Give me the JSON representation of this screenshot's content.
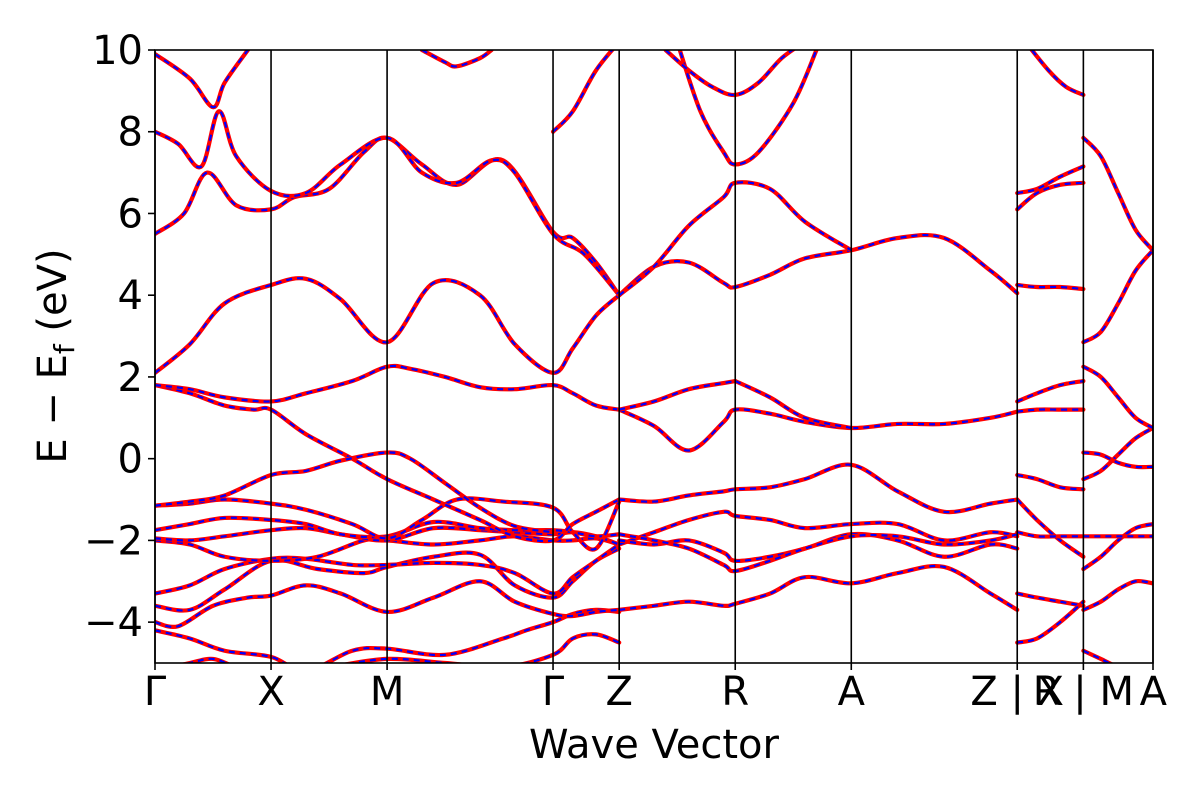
{
  "chart_data": {
    "type": "line",
    "title": "",
    "xlabel": "Wave Vector",
    "ylabel": "E − E",
    "ylabel_sub": "f",
    "ylabel_unit": " (eV)",
    "ylim": [
      -5,
      10
    ],
    "xlim": [
      0,
      8.6
    ],
    "grid": false,
    "yticks": [
      -4,
      -2,
      0,
      2,
      4,
      6,
      8,
      10
    ],
    "ytick_labels": [
      "−4",
      "−2",
      "0",
      "2",
      "4",
      "6",
      "8",
      "10"
    ],
    "high_symmetry_points": [
      {
        "label": "Γ",
        "x": 0.0
      },
      {
        "label": "X",
        "x": 1.0
      },
      {
        "label": "M",
        "x": 2.0
      },
      {
        "label": "Γ",
        "x": 3.43
      },
      {
        "label": "Z",
        "x": 4.0
      },
      {
        "label": "R",
        "x": 5.0
      },
      {
        "label": "A",
        "x": 6.0
      },
      {
        "label": "Z | X",
        "x": 7.43
      },
      {
        "label": "R | M",
        "x": 8.0
      },
      {
        "label": "A",
        "x": 8.6
      }
    ],
    "series_colors": {
      "solid": "#ff0000",
      "dashed": "#0000ff"
    },
    "bands": [
      {
        "x": [
          0,
          0.3,
          0.5,
          0.7,
          1,
          1.5,
          2,
          2.5,
          3,
          3.43,
          3.6,
          3.8,
          4
        ],
        "y": [
          -5.2,
          -5,
          -4.9,
          -5.1,
          -5.3,
          -5.1,
          -4.9,
          -5.0,
          -5.1,
          -4.8,
          -4.4,
          -4.3,
          -4.5
        ]
      },
      {
        "x": [
          0,
          0.3,
          0.6,
          1,
          1.3,
          1.7,
          2,
          2.5,
          3,
          3.2,
          3.43,
          3.6,
          3.8,
          4
        ],
        "y": [
          -4.2,
          -4.4,
          -4.7,
          -4.85,
          -5.2,
          -4.7,
          -4.65,
          -4.8,
          -4.4,
          -4.2,
          -4.0,
          -3.8,
          -3.7,
          -3.75
        ]
      },
      {
        "x": [
          0,
          0.2,
          0.5,
          0.8,
          1,
          1.3,
          1.6,
          2,
          2.4,
          2.8,
          3.1,
          3.43,
          3.6,
          3.8,
          4
        ],
        "y": [
          -4.0,
          -4.1,
          -3.6,
          -3.4,
          -3.35,
          -3.1,
          -3.3,
          -3.75,
          -3.4,
          -3.0,
          -3.5,
          -3.8,
          -3.85,
          -3.75,
          -3.7
        ]
      },
      {
        "x": [
          0,
          0.3,
          0.6,
          1,
          1.4,
          1.8,
          2,
          2.4,
          2.8,
          3.1,
          3.43,
          3.6,
          3.8,
          4
        ],
        "y": [
          -3.6,
          -3.7,
          -3.2,
          -2.5,
          -2.7,
          -2.8,
          -2.65,
          -2.4,
          -2.35,
          -3.1,
          -3.4,
          -3.0,
          -2.5,
          -2.2
        ]
      },
      {
        "x": [
          0,
          0.3,
          0.6,
          1,
          1.3,
          1.7,
          2,
          2.4,
          2.8,
          3.1,
          3.43,
          3.6,
          3.8,
          4
        ],
        "y": [
          -3.3,
          -3.1,
          -2.7,
          -2.45,
          -2.45,
          -2.6,
          -2.6,
          -2.55,
          -2.6,
          -2.8,
          -3.3,
          -2.9,
          -2.5,
          -2.1
        ]
      },
      {
        "x": [
          0,
          0.3,
          0.6,
          1,
          1.4,
          1.8,
          2,
          2.4,
          2.8,
          3.1,
          3.43,
          3.6,
          3.8,
          4
        ],
        "y": [
          -2.0,
          -2.1,
          -2.4,
          -2.5,
          -2.4,
          -2.0,
          -2.0,
          -2.1,
          -2.0,
          -1.9,
          -2.0,
          -2.0,
          -1.95,
          -2.1
        ]
      },
      {
        "x": [
          0,
          0.3,
          0.6,
          1,
          1.3,
          1.6,
          2,
          2.4,
          2.8,
          3.1,
          3.43,
          3.6,
          3.8,
          4
        ],
        "y": [
          -1.95,
          -2.0,
          -1.9,
          -1.75,
          -1.7,
          -1.85,
          -2.0,
          -1.7,
          -1.75,
          -1.8,
          -1.85,
          -1.8,
          -1.9,
          -2.1
        ]
      },
      {
        "x": [
          0,
          0.3,
          0.6,
          1,
          1.3,
          1.6,
          2,
          2.4,
          2.8,
          3.1,
          3.43,
          3.6,
          3.8,
          4
        ],
        "y": [
          -1.75,
          -1.6,
          -1.45,
          -1.5,
          -1.6,
          -1.85,
          -1.9,
          -1.55,
          -1.7,
          -1.75,
          -1.75,
          -1.8,
          -1.9,
          -1.85
        ]
      },
      {
        "x": [
          0,
          0.3,
          0.6,
          1,
          1.3,
          1.7,
          2,
          2.3,
          2.6,
          3.0,
          3.43,
          3.6,
          3.8,
          4
        ],
        "y": [
          -1.15,
          -1.1,
          -1.0,
          -1.1,
          -1.25,
          -1.6,
          -1.95,
          -1.5,
          -1.0,
          -1.05,
          -1.2,
          -1.8,
          -2.2,
          -1.05
        ]
      },
      {
        "x": [
          0,
          0.3,
          0.6,
          0.85,
          1,
          1.3,
          1.7,
          2,
          2.4,
          2.8,
          3.1,
          3.43,
          3.6,
          3.8,
          4
        ],
        "y": [
          1.8,
          1.6,
          1.3,
          1.2,
          1.2,
          0.6,
          0.0,
          -0.5,
          -1.0,
          -1.5,
          -1.9,
          -2.0,
          -1.6,
          -1.3,
          -1.0
        ]
      },
      {
        "x": [
          0,
          0.3,
          0.6,
          1,
          1.3,
          1.7,
          2,
          2.2,
          2.5,
          2.8,
          3.1,
          3.43,
          3.6,
          3.8,
          4
        ],
        "y": [
          1.8,
          1.7,
          1.5,
          1.4,
          1.6,
          1.9,
          2.25,
          2.2,
          2.0,
          1.75,
          1.7,
          1.8,
          1.6,
          1.3,
          1.2
        ]
      },
      {
        "x": [
          0,
          0.3,
          0.6,
          1,
          1.3,
          1.6,
          2,
          2.2,
          2.5,
          2.8,
          3.1,
          3.43
        ],
        "y": [
          -1.15,
          -1.05,
          -0.9,
          -0.4,
          -0.3,
          -0.05,
          0.15,
          0.0,
          -0.6,
          -1.2,
          -1.65,
          -1.8
        ]
      },
      {
        "x": [
          0,
          0.3,
          0.6,
          1,
          1.3,
          1.6,
          2,
          2.4,
          2.8,
          3.1,
          3.43,
          3.6,
          3.8,
          4
        ],
        "y": [
          2.1,
          2.8,
          3.8,
          4.25,
          4.4,
          3.9,
          2.85,
          4.3,
          4.0,
          2.8,
          2.1,
          2.7,
          3.5,
          4.0
        ]
      },
      {
        "x": [
          0,
          0.25,
          0.45,
          0.7,
          1,
          1.2,
          1.5,
          1.8,
          2,
          2.3,
          2.6,
          3.0,
          3.43,
          3.6,
          3.8,
          4
        ],
        "y": [
          5.5,
          6.0,
          7.0,
          6.2,
          6.1,
          6.4,
          6.6,
          7.5,
          7.85,
          7.2,
          6.7,
          7.3,
          5.55,
          5.4,
          4.8,
          4.0
        ]
      },
      {
        "x": [
          0,
          0.2,
          0.4,
          0.55,
          0.7,
          1,
          1.3,
          1.6,
          2,
          2.3,
          2.6,
          2.9,
          3.1,
          3.43,
          3.7,
          4
        ],
        "y": [
          8.0,
          7.7,
          7.15,
          8.5,
          7.4,
          6.55,
          6.5,
          7.2,
          7.85,
          7.0,
          6.75,
          7.3,
          7.0,
          5.5,
          5.0,
          4.0
        ]
      },
      {
        "x": [
          0,
          0.3,
          0.5,
          0.6,
          0.8
        ],
        "y": [
          9.9,
          9.3,
          8.6,
          9.2,
          10.0
        ]
      },
      {
        "x": [
          2.3,
          2.5,
          2.6,
          2.8,
          2.9
        ],
        "y": [
          10.0,
          9.7,
          9.6,
          9.8,
          10.0
        ]
      },
      {
        "x": [
          3.43,
          3.6,
          3.8,
          4
        ],
        "y": [
          8.0,
          8.5,
          9.5,
          10.2
        ]
      },
      {
        "x": [
          4,
          4.3,
          4.6,
          4.9,
          5,
          5.3,
          5.6,
          6,
          6.4,
          6.8,
          7.2,
          7.43
        ],
        "y": [
          -1.0,
          -1.05,
          -0.9,
          -0.8,
          -0.75,
          -0.7,
          -0.5,
          -0.15,
          -0.8,
          -1.3,
          -1.1,
          -1.0
        ]
      },
      {
        "x": [
          4,
          4.3,
          4.6,
          4.9,
          5,
          5.3,
          5.6,
          6,
          6.4,
          6.8,
          7.2,
          7.43
        ],
        "y": [
          -2.1,
          -1.8,
          -1.5,
          -1.3,
          -1.4,
          -1.5,
          -1.7,
          -1.6,
          -1.6,
          -2.0,
          -1.8,
          -1.9
        ]
      },
      {
        "x": [
          4,
          4.3,
          4.6,
          4.9,
          5,
          5.3,
          5.6,
          6,
          6.4,
          6.8,
          7.2,
          7.43
        ],
        "y": [
          -2.0,
          -2.1,
          -2.0,
          -2.3,
          -2.5,
          -2.4,
          -2.2,
          -1.85,
          -2.0,
          -2.4,
          -2.1,
          -2.2
        ]
      },
      {
        "x": [
          4,
          4.3,
          4.6,
          4.9,
          5,
          5.3,
          5.6,
          6,
          6.4,
          6.8,
          7.2,
          7.43
        ],
        "y": [
          -3.7,
          -3.6,
          -3.5,
          -3.6,
          -3.55,
          -3.3,
          -2.9,
          -3.05,
          -2.8,
          -2.65,
          -3.3,
          -3.7
        ]
      },
      {
        "x": [
          4,
          4.3,
          4.6,
          4.9,
          5,
          5.3,
          5.6,
          6,
          6.4,
          6.8,
          7.2,
          7.43
        ],
        "y": [
          -1.85,
          -2.0,
          -2.2,
          -2.6,
          -2.75,
          -2.5,
          -2.2,
          -1.9,
          -1.9,
          -2.1,
          -2.0,
          -1.85
        ]
      },
      {
        "x": [
          4,
          4.3,
          4.6,
          4.9,
          5,
          5.3,
          5.6,
          6,
          6.4,
          6.8,
          7.2,
          7.43
        ],
        "y": [
          1.2,
          0.8,
          0.2,
          0.9,
          1.2,
          1.1,
          0.9,
          0.75,
          0.85,
          0.85,
          1.0,
          1.15
        ]
      },
      {
        "x": [
          4,
          4.3,
          4.6,
          4.9,
          5
        ],
        "y": [
          1.2,
          1.4,
          1.7,
          1.85,
          1.9
        ]
      },
      {
        "x": [
          5,
          5.3,
          5.6,
          6
        ],
        "y": [
          1.9,
          1.5,
          1.0,
          0.75
        ]
      },
      {
        "x": [
          4,
          4.3,
          4.6,
          4.9,
          5,
          5.3,
          5.6,
          6,
          6.4,
          6.8,
          7.2,
          7.43
        ],
        "y": [
          4.0,
          4.7,
          4.8,
          4.3,
          4.2,
          4.5,
          4.9,
          5.1,
          5.4,
          5.4,
          4.6,
          4.05
        ]
      },
      {
        "x": [
          4,
          4.3,
          4.6,
          4.9,
          5,
          5.3,
          5.6,
          6
        ],
        "y": [
          4.0,
          4.7,
          5.7,
          6.4,
          6.75,
          6.6,
          5.8,
          5.1
        ]
      },
      {
        "x": [
          4.5,
          4.7,
          4.9,
          5,
          5.2,
          5.5,
          5.7
        ],
        "y": [
          10.2,
          8.5,
          7.5,
          7.2,
          7.5,
          8.7,
          10.0
        ]
      },
      {
        "x": [
          4.4,
          4.6,
          4.8,
          5,
          5.2,
          5.4,
          5.6
        ],
        "y": [
          10.0,
          9.5,
          9.1,
          8.9,
          9.2,
          9.8,
          10.2
        ]
      },
      {
        "x": [
          7.43,
          7.6,
          7.8,
          8
        ],
        "y": [
          -1.0,
          -1.5,
          -2.0,
          -2.4
        ]
      },
      {
        "x": [
          7.43,
          7.6,
          7.8,
          8
        ],
        "y": [
          -1.8,
          -1.9,
          -1.9,
          -1.9
        ]
      },
      {
        "x": [
          7.43,
          7.6,
          7.8,
          8
        ],
        "y": [
          -3.3,
          -3.4,
          -3.5,
          -3.6
        ]
      },
      {
        "x": [
          7.43,
          7.6,
          7.8,
          8
        ],
        "y": [
          -4.5,
          -4.4,
          -4.0,
          -3.5
        ]
      },
      {
        "x": [
          7.43,
          7.6,
          7.8,
          8
        ],
        "y": [
          -0.4,
          -0.5,
          -0.7,
          -0.75
        ]
      },
      {
        "x": [
          7.43,
          7.6,
          7.8,
          8
        ],
        "y": [
          1.4,
          1.6,
          1.8,
          1.9
        ]
      },
      {
        "x": [
          7.43,
          7.6,
          7.8,
          8
        ],
        "y": [
          1.15,
          1.2,
          1.2,
          1.2
        ]
      },
      {
        "x": [
          7.43,
          7.6,
          7.8,
          8
        ],
        "y": [
          4.25,
          4.2,
          4.2,
          4.15
        ]
      },
      {
        "x": [
          7.43,
          7.6,
          7.8,
          8
        ],
        "y": [
          6.1,
          6.5,
          6.7,
          6.75
        ]
      },
      {
        "x": [
          7.43,
          7.6,
          7.8,
          8
        ],
        "y": [
          6.5,
          6.6,
          6.9,
          7.15
        ]
      },
      {
        "x": [
          7.5,
          7.7,
          7.85,
          8
        ],
        "y": [
          10.2,
          9.5,
          9.1,
          8.9
        ]
      },
      {
        "x": [
          8,
          8.15,
          8.3,
          8.45,
          8.6
        ],
        "y": [
          -3.7,
          -3.5,
          -3.2,
          -3.0,
          -3.05
        ]
      },
      {
        "x": [
          8,
          8.15,
          8.3,
          8.45,
          8.6
        ],
        "y": [
          -2.7,
          -2.4,
          -2.0,
          -1.7,
          -1.6
        ]
      },
      {
        "x": [
          8,
          8.15,
          8.3,
          8.45,
          8.6
        ],
        "y": [
          -1.9,
          -1.9,
          -1.9,
          -1.9,
          -1.9
        ]
      },
      {
        "x": [
          8,
          8.15,
          8.3,
          8.45,
          8.6
        ],
        "y": [
          -0.5,
          -0.3,
          0.1,
          0.5,
          0.75
        ]
      },
      {
        "x": [
          8,
          8.15,
          8.3,
          8.45,
          8.6
        ],
        "y": [
          0.15,
          0.1,
          -0.1,
          -0.2,
          -0.2
        ]
      },
      {
        "x": [
          8,
          8.15,
          8.3,
          8.45,
          8.6
        ],
        "y": [
          2.25,
          2.0,
          1.5,
          1.0,
          0.75
        ]
      },
      {
        "x": [
          8,
          8.15,
          8.3,
          8.45,
          8.6
        ],
        "y": [
          2.85,
          3.1,
          3.8,
          4.6,
          5.1
        ]
      },
      {
        "x": [
          8,
          8.15,
          8.3,
          8.45,
          8.6
        ],
        "y": [
          7.85,
          7.4,
          6.5,
          5.6,
          5.1
        ]
      },
      {
        "x": [
          8,
          8.15,
          8.3,
          8.45,
          8.6
        ],
        "y": [
          -4.7,
          -4.9,
          -5.1,
          -5.2,
          -5.2
        ]
      }
    ]
  }
}
